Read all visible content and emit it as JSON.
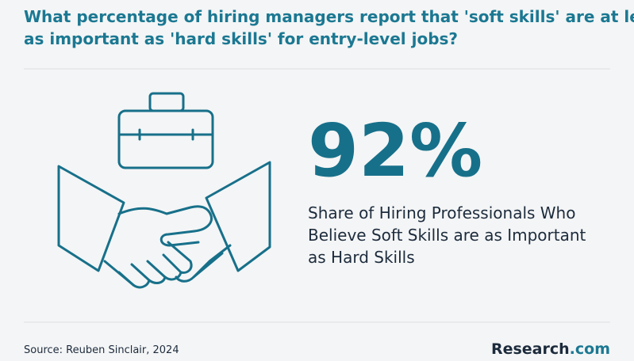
{
  "header": {
    "title_lines": [
      "What percentage of hiring managers report that 'soft skills' are at least",
      "as important as 'hard skills' for entry-level jobs?"
    ]
  },
  "stat": {
    "value": "92%",
    "description_lines": [
      "Share of Hiring Professionals Who",
      "Believe Soft Skills are as Important",
      "as Hard Skills"
    ]
  },
  "footer": {
    "source": "Source: Reuben Sinclair, 2024",
    "logo": {
      "name": "Research",
      "suffix": ".com"
    }
  }
}
